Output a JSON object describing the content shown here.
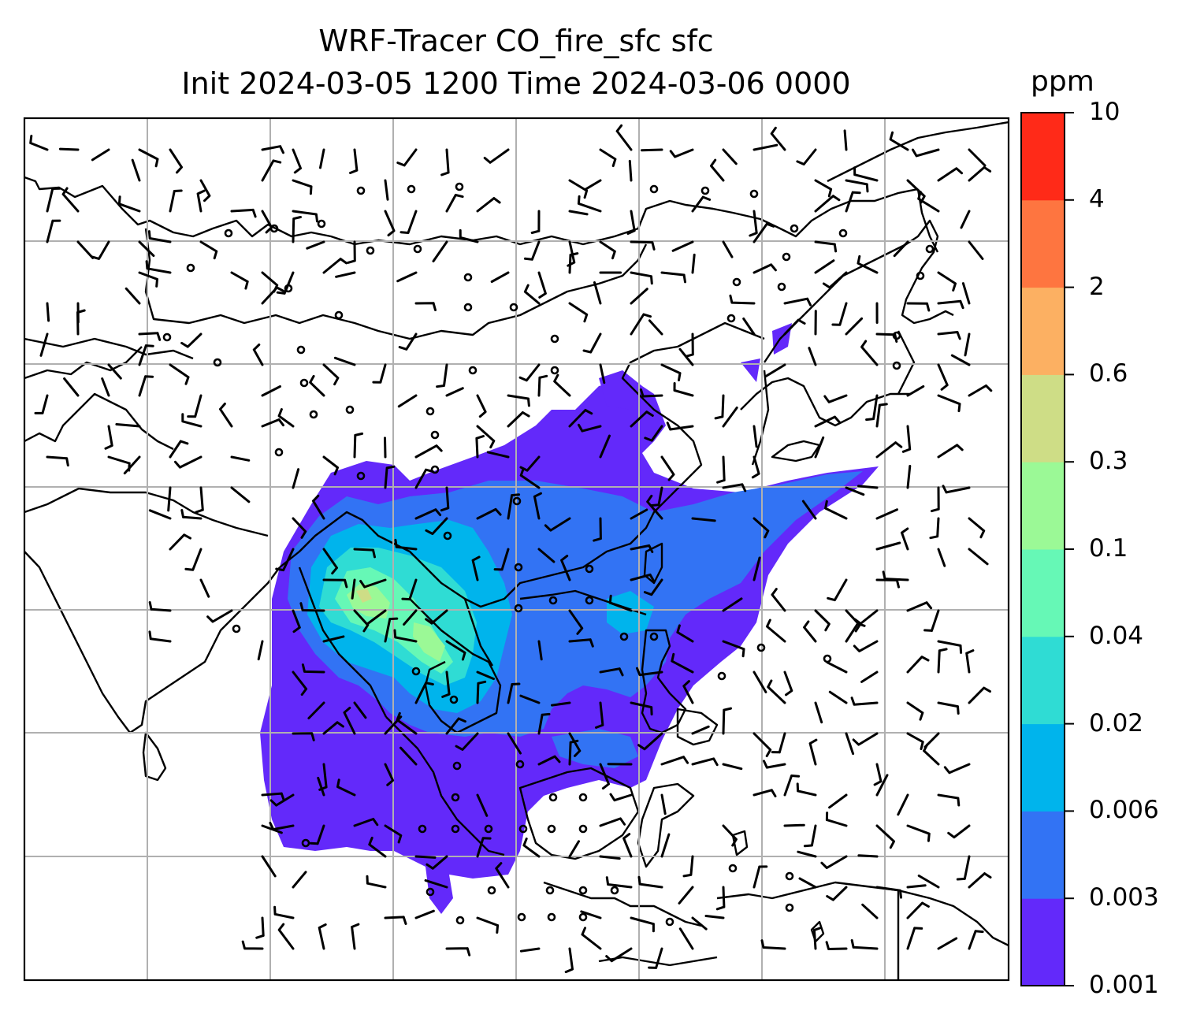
{
  "title_line1": "WRF-Tracer CO_fire_sfc sfc",
  "title_line2": "Init 2024-03-05 1200 Time 2024-03-06 0000",
  "colorbar": {
    "units": "ppm",
    "ticks": [
      "0.001",
      "0.003",
      "0.006",
      "0.02",
      "0.04",
      "0.1",
      "0.3",
      "0.6",
      "2",
      "4",
      "10"
    ],
    "colors": [
      "#6329fa",
      "#3273f4",
      "#00b4ec",
      "#2fdcd4",
      "#66f8b6",
      "#9bf996",
      "#cedd86",
      "#fcb062",
      "#fe7540",
      "#ff2a18"
    ]
  },
  "map": {
    "field": "CO_fire_sfc",
    "gridlines": true,
    "coastline_color": "#000000",
    "wind_barbs": true,
    "calm_markers": true
  }
}
